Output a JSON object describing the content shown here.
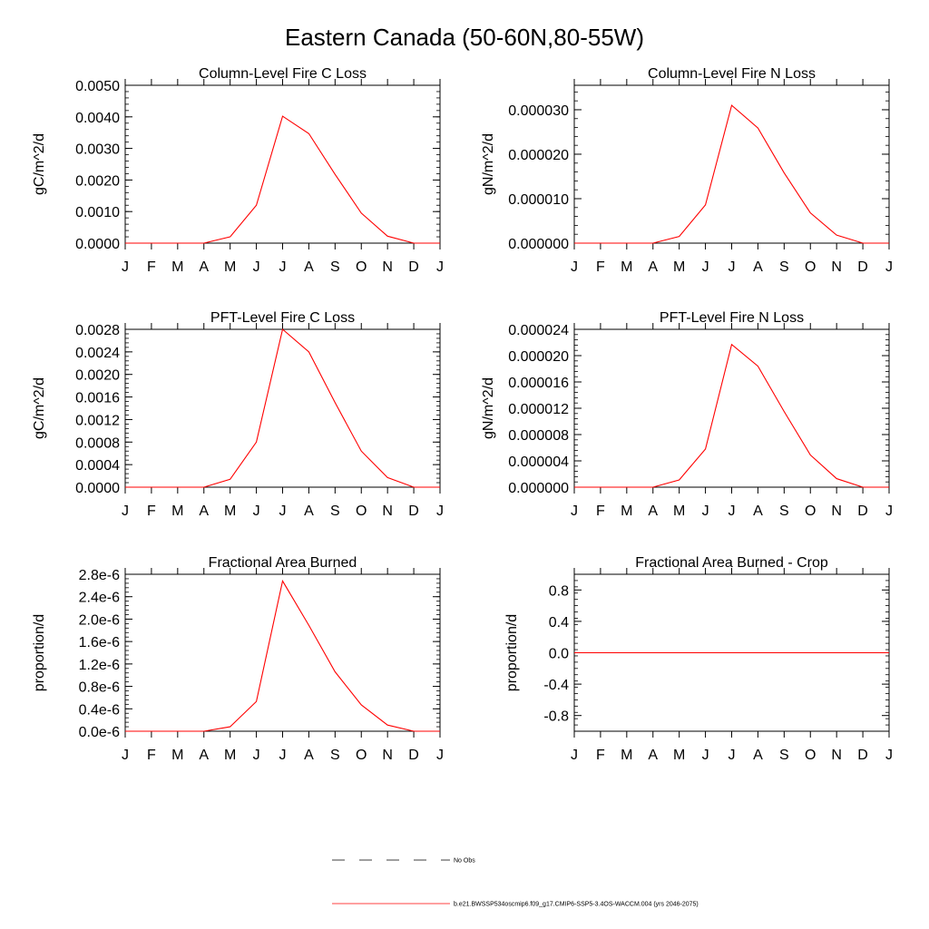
{
  "figure": {
    "title": "Eastern Canada (50-60N,80-55W)",
    "background_color": "#ffffff",
    "line_color": "#ff0000",
    "axis_color": "#000000"
  },
  "legend": {
    "entries": [
      {
        "label": "No Obs",
        "style": "dashed",
        "color": "#000000"
      },
      {
        "label": "b.e21.BWSSP534oscmip6.f09_g17.CMIP6-SSP5-3.4OS-WACCM.004 (yrs 2046-2075)",
        "style": "solid",
        "color": "#ff0000"
      }
    ]
  },
  "chart_data": [
    {
      "type": "line",
      "title": "Column-Level Fire C Loss",
      "ylabel": "gC/m^2/d",
      "xlabel": "",
      "categories": [
        "J",
        "F",
        "M",
        "A",
        "M",
        "J",
        "J",
        "A",
        "S",
        "O",
        "N",
        "D",
        "J"
      ],
      "ylim": [
        0,
        0.005
      ],
      "yticks": [
        "0.0000",
        "0.0010",
        "0.0020",
        "0.0030",
        "0.0040",
        "0.0050"
      ],
      "series": [
        {
          "name": "b.e21.BWSSP534oscmip6.f09_g17.CMIP6-SSP5-3.4OS-WACCM.004 (yrs 2046-2075)",
          "values": [
            0,
            0,
            0,
            0,
            0.0002,
            0.0012,
            0.00402,
            0.00347,
            0.00218,
            0.00095,
            0.00022,
            0,
            0
          ]
        }
      ]
    },
    {
      "type": "line",
      "title": "Column-Level Fire N Loss",
      "ylabel": "gN/m^2/d",
      "xlabel": "",
      "categories": [
        "J",
        "F",
        "M",
        "A",
        "M",
        "J",
        "J",
        "A",
        "S",
        "O",
        "N",
        "D",
        "J"
      ],
      "ylim": [
        0,
        3.55e-05
      ],
      "yticks": [
        "0.000000",
        "0.000010",
        "0.000020",
        "0.000030"
      ],
      "series": [
        {
          "name": "b.e21.BWSSP534oscmip6.f09_g17.CMIP6-SSP5-3.4OS-WACCM.004 (yrs 2046-2075)",
          "values": [
            0,
            0,
            0,
            0,
            1.5e-06,
            8.6e-06,
            3.1e-05,
            2.59e-05,
            1.58e-05,
            6.8e-06,
            1.8e-06,
            0,
            0
          ]
        }
      ]
    },
    {
      "type": "line",
      "title": "PFT-Level Fire C Loss",
      "ylabel": "gC/m^2/d",
      "xlabel": "",
      "categories": [
        "J",
        "F",
        "M",
        "A",
        "M",
        "J",
        "J",
        "A",
        "S",
        "O",
        "N",
        "D",
        "J"
      ],
      "ylim": [
        0,
        0.0028
      ],
      "yticks": [
        "0.0000",
        "0.0004",
        "0.0008",
        "0.0012",
        "0.0016",
        "0.0020",
        "0.0024",
        "0.0028"
      ],
      "series": [
        {
          "name": "b.e21.BWSSP534oscmip6.f09_g17.CMIP6-SSP5-3.4OS-WACCM.004 (yrs 2046-2075)",
          "values": [
            0,
            0,
            0,
            0,
            0.00014,
            0.0008,
            0.0028,
            0.0024,
            0.0015,
            0.00064,
            0.00017,
            0,
            0
          ]
        }
      ]
    },
    {
      "type": "line",
      "title": "PFT-Level Fire N Loss",
      "ylabel": "gN/m^2/d",
      "xlabel": "",
      "categories": [
        "J",
        "F",
        "M",
        "A",
        "M",
        "J",
        "J",
        "A",
        "S",
        "O",
        "N",
        "D",
        "J"
      ],
      "ylim": [
        0,
        2.4e-05
      ],
      "yticks": [
        "0.000000",
        "0.000004",
        "0.000008",
        "0.000012",
        "0.000016",
        "0.000020",
        "0.000024"
      ],
      "series": [
        {
          "name": "b.e21.BWSSP534oscmip6.f09_g17.CMIP6-SSP5-3.4OS-WACCM.004 (yrs 2046-2075)",
          "values": [
            0,
            0,
            0,
            0,
            1.1e-06,
            5.8e-06,
            2.17e-05,
            1.84e-05,
            1.15e-05,
            4.9e-06,
            1.3e-06,
            0,
            0
          ]
        }
      ]
    },
    {
      "type": "line",
      "title": "Fractional Area Burned",
      "ylabel": "proportion/d",
      "xlabel": "",
      "categories": [
        "J",
        "F",
        "M",
        "A",
        "M",
        "J",
        "J",
        "A",
        "S",
        "O",
        "N",
        "D",
        "J"
      ],
      "ylim": [
        0,
        2.8e-06
      ],
      "yticks": [
        "0.0e-6",
        "0.4e-6",
        "0.8e-6",
        "1.2e-6",
        "1.6e-6",
        "2.0e-6",
        "2.4e-6",
        "2.8e-6"
      ],
      "series": [
        {
          "name": "b.e21.BWSSP534oscmip6.f09_g17.CMIP6-SSP5-3.4OS-WACCM.004 (yrs 2046-2075)",
          "values": [
            0,
            0,
            0,
            0,
            8e-08,
            5.3e-07,
            2.68e-06,
            1.89e-06,
            1.06e-06,
            4.7e-07,
            1.1e-07,
            0,
            0
          ]
        }
      ]
    },
    {
      "type": "line",
      "title": "Fractional Area Burned - Crop",
      "ylabel": "proportion/d",
      "xlabel": "",
      "categories": [
        "J",
        "F",
        "M",
        "A",
        "M",
        "J",
        "J",
        "A",
        "S",
        "O",
        "N",
        "D",
        "J"
      ],
      "ylim": [
        -1,
        1
      ],
      "yticks": [
        "-0.8",
        "-0.4",
        "0.0",
        "0.4",
        "0.8"
      ],
      "series": [
        {
          "name": "b.e21.BWSSP534oscmip6.f09_g17.CMIP6-SSP5-3.4OS-WACCM.004 (yrs 2046-2075)",
          "values": [
            0,
            0,
            0,
            0,
            0,
            0,
            0,
            0,
            0,
            0,
            0,
            0,
            0
          ]
        }
      ]
    }
  ]
}
